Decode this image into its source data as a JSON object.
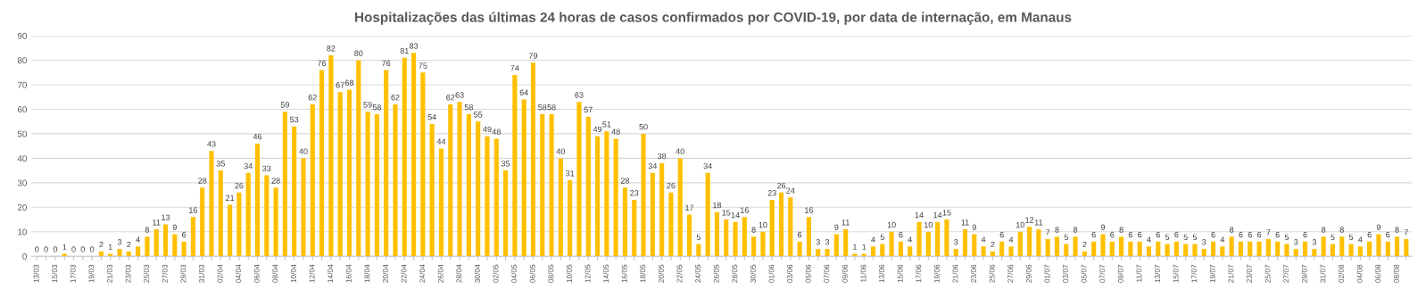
{
  "chart_data": {
    "type": "bar",
    "title": "Hospitalizações das últimas 24 horas de casos confirmados por COVID-19, por data de internação, em Manaus",
    "categories": [
      "13/03",
      null,
      "15/03",
      null,
      "17/03",
      null,
      "19/03",
      null,
      "21/03",
      null,
      "23/03",
      null,
      "25/03",
      null,
      "27/03",
      null,
      "29/03",
      null,
      "31/03",
      null,
      "02/04",
      null,
      "04/04",
      null,
      "06/04",
      null,
      "08/04",
      null,
      "10/04",
      null,
      "12/04",
      null,
      "14/04",
      null,
      "16/04",
      null,
      "18/04",
      null,
      "20/04",
      null,
      "22/04",
      null,
      "24/04",
      null,
      "26/04",
      null,
      "28/04",
      null,
      "30/04",
      null,
      "02/05",
      null,
      "04/05",
      null,
      "06/05",
      null,
      "08/05",
      null,
      "10/05",
      null,
      "12/05",
      null,
      "14/05",
      null,
      "16/05",
      null,
      "18/05",
      null,
      "20/05",
      null,
      "22/05",
      null,
      "24/05",
      null,
      "26/05",
      null,
      "28/05",
      null,
      "30/05",
      null,
      "01/06",
      null,
      "03/06",
      null,
      "05/06",
      null,
      "07/06",
      null,
      "09/06",
      null,
      "11/06",
      null,
      "13/06",
      null,
      "15/06",
      null,
      "17/06",
      null,
      "19/06",
      null,
      "21/06",
      null,
      "23/06",
      null,
      "25/06",
      null,
      "27/06",
      null,
      "29/06",
      null,
      "01/07",
      null,
      "03/07",
      null,
      "05/07",
      null,
      "07/07",
      null,
      "09/07",
      null,
      "11/07",
      null,
      "13/07",
      null,
      "15/07",
      null,
      "17/07",
      null,
      "19/07",
      null,
      "21/07",
      null,
      "23/07",
      null,
      "25/07",
      null,
      "27/07",
      null,
      "29/07",
      null,
      "31/07",
      null,
      "02/08",
      null,
      "04/08",
      null,
      "06/08",
      null,
      "08/08",
      null
    ],
    "values": [
      0,
      0,
      0,
      1,
      0,
      0,
      0,
      2,
      1,
      3,
      2,
      4,
      8,
      11,
      13,
      9,
      6,
      16,
      28,
      43,
      35,
      21,
      26,
      34,
      46,
      33,
      28,
      59,
      53,
      40,
      62,
      76,
      82,
      67,
      68,
      80,
      59,
      58,
      76,
      62,
      81,
      83,
      75,
      54,
      44,
      62,
      63,
      58,
      55,
      49,
      48,
      35,
      74,
      64,
      79,
      58,
      58,
      40,
      31,
      63,
      57,
      49,
      51,
      48,
      28,
      23,
      50,
      34,
      38,
      26,
      40,
      17,
      5,
      34,
      18,
      15,
      14,
      16,
      8,
      10,
      23,
      26,
      24,
      6,
      16,
      3,
      3,
      9,
      11,
      1,
      1,
      4,
      5,
      10,
      6,
      4,
      14,
      10,
      14,
      15,
      3,
      11,
      9,
      4,
      2,
      6,
      4,
      10,
      12,
      11,
      7,
      8,
      5,
      8,
      2,
      6,
      9,
      6,
      8,
      6,
      6,
      4,
      6,
      5,
      6,
      5,
      5,
      3,
      6,
      4,
      8,
      6,
      6,
      6,
      7,
      6,
      5,
      3,
      6,
      3,
      8,
      5,
      8,
      5,
      4,
      6,
      9,
      6,
      8,
      7
    ],
    "color": "#ffc000",
    "ylim": [
      0,
      90
    ],
    "yticks": [
      0,
      10,
      20,
      30,
      40,
      50,
      60,
      70,
      80,
      90
    ],
    "grid": "y",
    "data_labels": true
  }
}
